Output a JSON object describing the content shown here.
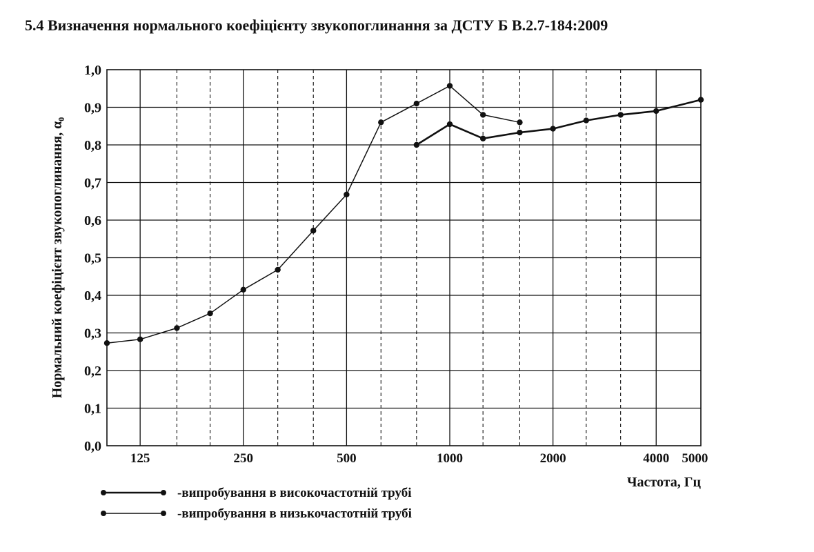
{
  "heading": "5.4 Визначення нормального коефіцієнту звукопоглинання за ДСТУ Б В.2.7-184:2009",
  "chart_data": {
    "type": "line",
    "title": "5.4 Визначення нормального коефіцієнту звукопоглинання за ДСТУ Б В.2.7-184:2009",
    "xlabel": "Частота, Гц",
    "ylabel": "Нормальний коефіцієнт звукопоглинання, α₀",
    "x_scale": "log",
    "xlim": [
      100,
      5400
    ],
    "ylim": [
      0.0,
      1.0
    ],
    "x_ticks": [
      125,
      160,
      200,
      250,
      315,
      400,
      500,
      630,
      800,
      1000,
      1250,
      1600,
      2000,
      2500,
      3150,
      4000,
      5400
    ],
    "x_tick_labels": [
      {
        "value": 125,
        "label": "125"
      },
      {
        "value": 250,
        "label": "250"
      },
      {
        "value": 500,
        "label": "500"
      },
      {
        "value": 1000,
        "label": "1000"
      },
      {
        "value": 2000,
        "label": "2000"
      },
      {
        "value": 4000,
        "label": "4000"
      },
      {
        "value": 5000,
        "label": "5000"
      }
    ],
    "y_ticks": [
      0.0,
      0.1,
      0.2,
      0.3,
      0.4,
      0.5,
      0.6,
      0.7,
      0.8,
      0.9,
      1.0
    ],
    "y_tick_labels": [
      "0,0",
      "0,1",
      "0,2",
      "0,3",
      "0,4",
      "0,5",
      "0,6",
      "0,7",
      "0,8",
      "0,9",
      "1,0"
    ],
    "grid": true,
    "legend_position": "bottom-left",
    "series": [
      {
        "name": "-випробування в високочастотній трубі",
        "x": [
          800,
          1000,
          1250,
          1600,
          2000,
          2500,
          3150,
          4000,
          5400
        ],
        "y": [
          0.8,
          0.855,
          0.817,
          0.833,
          0.843,
          0.865,
          0.88,
          0.89,
          0.92
        ]
      },
      {
        "name": "-випробування в низькочастотній трубі",
        "x": [
          100,
          125,
          160,
          200,
          250,
          315,
          400,
          500,
          630,
          800,
          1000,
          1250,
          1600
        ],
        "y": [
          0.273,
          0.283,
          0.313,
          0.352,
          0.415,
          0.468,
          0.572,
          0.668,
          0.86,
          0.91,
          0.957,
          0.88,
          0.86
        ]
      }
    ]
  }
}
